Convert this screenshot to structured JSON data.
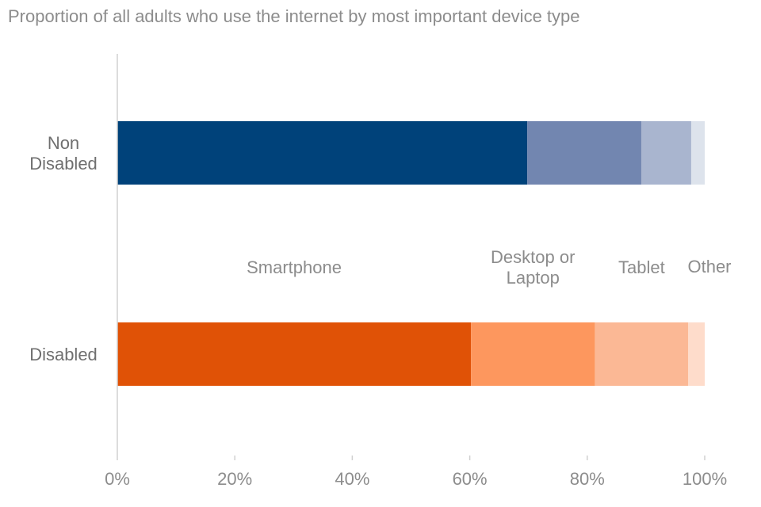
{
  "chart_data": {
    "type": "bar",
    "orientation": "horizontal",
    "stacked": true,
    "title": "Proportion of all adults who use the internet by most important device type",
    "categories": [
      [
        "Non",
        "Disabled"
      ],
      [
        "Disabled"
      ]
    ],
    "segment_labels": [
      [
        "Smartphone"
      ],
      [
        "Desktop or",
        "Laptop"
      ],
      [
        "Tablet"
      ],
      [
        "Other"
      ]
    ],
    "series": [
      {
        "values": [
          69.8,
          60.2
        ]
      },
      {
        "values": [
          19.4,
          21.1
        ]
      },
      {
        "values": [
          8.5,
          15.9
        ]
      },
      {
        "values": [
          2.3,
          2.8
        ]
      }
    ],
    "colors": [
      [
        "#00427a",
        "#7286b0",
        "#a9b5cf",
        "#dde3ec"
      ],
      [
        "#e05206",
        "#fd975e",
        "#fbb895",
        "#fedccb"
      ]
    ],
    "xlim": [
      0,
      100
    ],
    "x_ticks": [
      "0%",
      "20%",
      "40%",
      "60%",
      "80%",
      "100%"
    ],
    "grid": false,
    "legend": "none"
  }
}
